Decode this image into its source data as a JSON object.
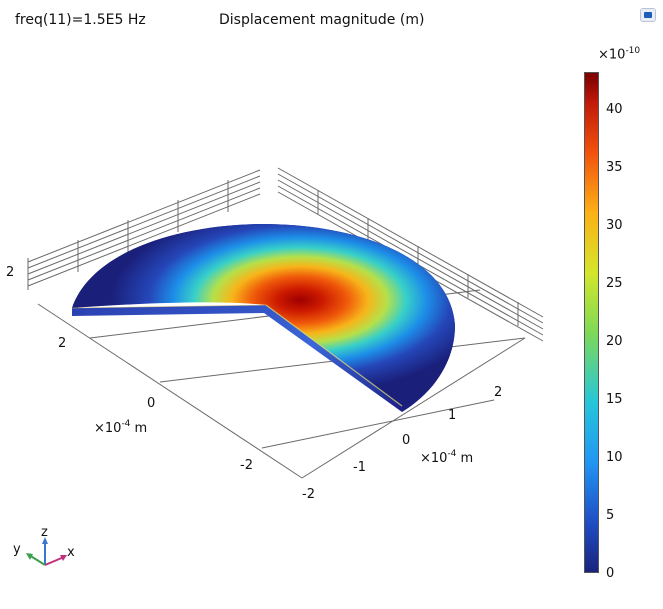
{
  "header": {
    "parameter": "freq(11)=1.5E5 Hz",
    "title": "Displacement magnitude (m)"
  },
  "toolbar": {
    "icon": "graphics-window-icon"
  },
  "chart_data": {
    "type": "surface-3d",
    "title": "Displacement magnitude (m)",
    "parameter": "freq(11)=1.5E5 Hz",
    "axes": {
      "x": {
        "ticks": [
          "-2",
          "-1",
          "0",
          "1",
          "2"
        ],
        "unit": "×10",
        "unit_exp": "-4",
        "unit_suffix": " m",
        "range": [
          -2,
          2
        ]
      },
      "y": {
        "ticks": [
          "-2",
          "0",
          "2"
        ],
        "unit": "×10",
        "unit_exp": "-4",
        "unit_suffix": " m",
        "range": [
          -2,
          2
        ]
      },
      "z": {
        "ticks": [
          "2"
        ]
      }
    },
    "colorbar": {
      "multiplier": "×10",
      "exponent": "-10",
      "ticks": [
        "0",
        "5",
        "10",
        "15",
        "20",
        "25",
        "30",
        "35",
        "40"
      ],
      "range": [
        0,
        43
      ],
      "colormap": "rainbow"
    },
    "triad": {
      "labels": [
        "x",
        "y",
        "z"
      ]
    }
  }
}
